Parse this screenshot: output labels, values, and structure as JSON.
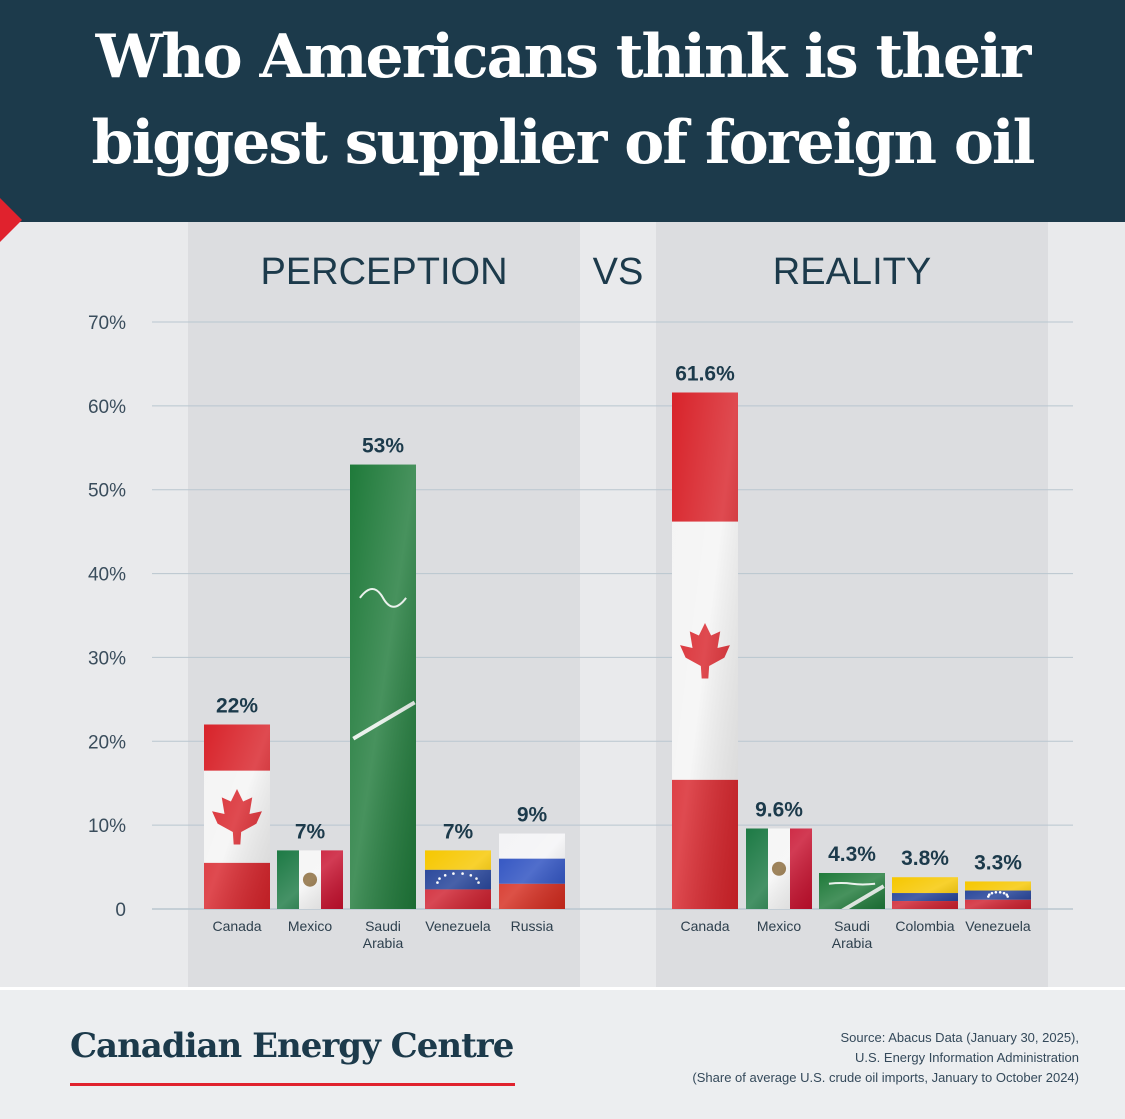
{
  "header": {
    "title_line1": "Who Americans think is their",
    "title_line2": "biggest supplier of foreign oil"
  },
  "colors": {
    "header_bg": "#1c3a4b",
    "accent_red": "#e0222d",
    "canada_red": "#d8232a",
    "saudi_green": "#1f7a3a",
    "mexico_green": "#1d7a45",
    "label_navy": "#1c3a4b"
  },
  "chart_data": {
    "type": "bar",
    "ylim": [
      0,
      70
    ],
    "yticks": [
      0,
      10,
      20,
      30,
      40,
      50,
      60,
      70
    ],
    "ytick_labels": [
      "0",
      "10%",
      "20%",
      "30%",
      "40%",
      "50%",
      "60%",
      "70%"
    ],
    "grid": true,
    "separator_label": "VS",
    "panels": [
      {
        "title": "PERCEPTION",
        "categories": [
          "Canada",
          "Mexico",
          "Saudi Arabia",
          "Venezuela",
          "Russia"
        ],
        "category_lines": [
          [
            "Canada"
          ],
          [
            "Mexico"
          ],
          [
            "Saudi",
            "Arabia"
          ],
          [
            "Venezuela"
          ],
          [
            "Russia"
          ]
        ],
        "values": [
          22,
          7,
          53,
          7,
          9
        ],
        "value_labels": [
          "22%",
          "7%",
          "53%",
          "7%",
          "9%"
        ],
        "fills": [
          "canada",
          "mexico",
          "saudi",
          "venezuela",
          "russia"
        ]
      },
      {
        "title": "REALITY",
        "categories": [
          "Canada",
          "Mexico",
          "Saudi Arabia",
          "Colombia",
          "Venezuela"
        ],
        "category_lines": [
          [
            "Canada"
          ],
          [
            "Mexico"
          ],
          [
            "Saudi",
            "Arabia"
          ],
          [
            "Colombia"
          ],
          [
            "Venezuela"
          ]
        ],
        "values": [
          61.6,
          9.6,
          4.3,
          3.8,
          3.3
        ],
        "value_labels": [
          "61.6%",
          "9.6%",
          "4.3%",
          "3.8%",
          "3.3%"
        ],
        "fills": [
          "canada",
          "mexico",
          "saudi",
          "colombia",
          "venezuela"
        ]
      }
    ]
  },
  "footer": {
    "brand": "Canadian Energy Centre",
    "source_line1": "Source: Abacus Data (January 30, 2025),",
    "source_line2": "U.S. Energy Information Administration",
    "source_line3": "(Share of average U.S. crude oil imports, January to October 2024)"
  }
}
